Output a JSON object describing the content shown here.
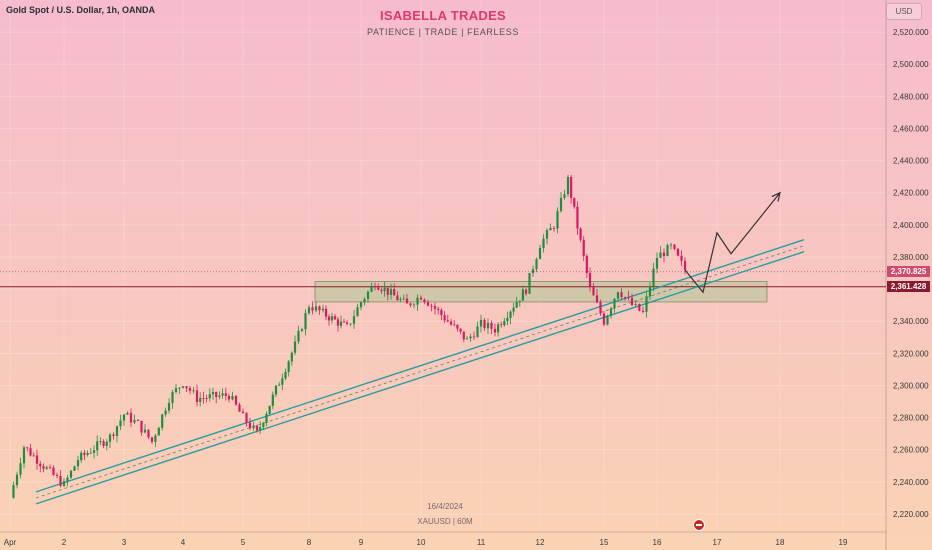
{
  "header": {
    "symbol": "Gold Spot / U.S. Dollar, 1h, OANDA",
    "brand": "ISABELLA TRADES",
    "tagline": "PATIENCE  |  TRADE  |  FEARLESS",
    "currency": "USD"
  },
  "watermark": {
    "date": "16/4/2024",
    "symbol": "XAUUSD | 60M"
  },
  "price_tags": {
    "current": "2,370.825",
    "level": "2,361.428"
  },
  "colors": {
    "up": "#26a69a",
    "up_body": "#1e8f3e",
    "down": "#d81b60",
    "channel": "#2a9d9f",
    "zone": "#c9c7a4",
    "level_line": "#8b1a2f",
    "arrow": "#333333"
  },
  "chart_data": {
    "type": "candlestick",
    "y_axis": {
      "min": 2210,
      "max": 2540,
      "ticks": [
        2220,
        2240,
        2260,
        2280,
        2300,
        2320,
        2340,
        2360,
        2380,
        2400,
        2420,
        2440,
        2460,
        2480,
        2500,
        2520
      ]
    },
    "x_labels": [
      "Apr",
      "2",
      "3",
      "4",
      "5",
      "8",
      "9",
      "10",
      "11",
      "12",
      "15",
      "16",
      "17",
      "18",
      "19"
    ],
    "close_path": [
      [
        "Apr",
        2230
      ],
      [
        "Apr+",
        2262
      ],
      [
        "2-",
        2246
      ],
      [
        "2",
        2238
      ],
      [
        "2+",
        2254
      ],
      [
        "3-",
        2268
      ],
      [
        "3",
        2282
      ],
      [
        "3+",
        2276
      ],
      [
        "3++",
        2265
      ],
      [
        "4-",
        2292
      ],
      [
        "4",
        2302
      ],
      [
        "4+",
        2292
      ],
      [
        "5-",
        2294
      ],
      [
        "5",
        2280
      ],
      [
        "5+",
        2270
      ],
      [
        "8-",
        2325
      ],
      [
        "8",
        2350
      ],
      [
        "8+",
        2345
      ],
      [
        "9-",
        2336
      ],
      [
        "9",
        2352
      ],
      [
        "9+",
        2364
      ],
      [
        "10-",
        2350
      ],
      [
        "10",
        2356
      ],
      [
        "10+",
        2348
      ],
      [
        "11-",
        2328
      ],
      [
        "11",
        2338
      ],
      [
        "11+",
        2335
      ],
      [
        "12-",
        2360
      ],
      [
        "12",
        2388
      ],
      [
        "12+",
        2400
      ],
      [
        "12++",
        2428
      ],
      [
        "15-",
        2360
      ],
      [
        "15",
        2340
      ],
      [
        "15+",
        2360
      ],
      [
        "15++",
        2350
      ],
      [
        "16-",
        2345
      ],
      [
        "16",
        2380
      ],
      [
        "16+",
        2386
      ],
      [
        "16++",
        2372
      ]
    ],
    "zone": {
      "from": "8",
      "to": "17+",
      "low": 2352,
      "high": 2361
    },
    "horizontal_lines": [
      2361.428,
      2370.825
    ],
    "channel": {
      "from": [
        "2-",
        2230
      ],
      "to": [
        "18+",
        2387
      ],
      "width": 6
    },
    "projection": [
      [
        "16++",
        2372
      ],
      [
        "17-",
        2358
      ],
      [
        "17",
        2395
      ],
      [
        "17+",
        2382
      ],
      [
        "18",
        2420
      ]
    ]
  }
}
